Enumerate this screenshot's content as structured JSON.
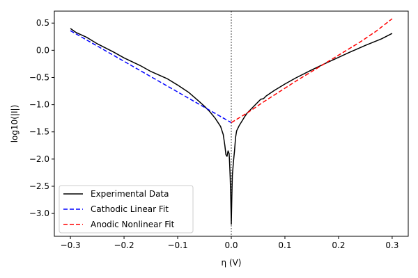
{
  "chart_data": {
    "type": "line",
    "title": "",
    "xlabel": "η (V)",
    "ylabel": "log10(|I|)",
    "xlim": [
      -0.33,
      0.33
    ],
    "ylim": [
      -3.42,
      0.72
    ],
    "xticks": [
      -0.3,
      -0.2,
      -0.1,
      0.0,
      0.1,
      0.2,
      0.3
    ],
    "xtick_labels": [
      "−0.3",
      "−0.2",
      "−0.1",
      "0.0",
      "0.1",
      "0.2",
      "0.3"
    ],
    "yticks": [
      -3.0,
      -2.5,
      -2.0,
      -1.5,
      -1.0,
      -0.5,
      0.0,
      0.5
    ],
    "ytick_labels": [
      "−3.0",
      "−2.5",
      "−2.0",
      "−1.5",
      "−1.0",
      "−0.5",
      "0.0",
      "0.5"
    ],
    "grid": false,
    "legend_position": "lower-left",
    "reference_line": {
      "x": 0.0,
      "style": "dotted",
      "color": "#808080"
    },
    "series": [
      {
        "name": "Experimental Data",
        "color": "#000000",
        "style": "solid",
        "points": [
          [
            -0.3,
            0.4
          ],
          [
            -0.29,
            0.33
          ],
          [
            -0.27,
            0.24
          ],
          [
            -0.25,
            0.12
          ],
          [
            -0.22,
            -0.03
          ],
          [
            -0.2,
            -0.14
          ],
          [
            -0.17,
            -0.28
          ],
          [
            -0.15,
            -0.39
          ],
          [
            -0.12,
            -0.52
          ],
          [
            -0.1,
            -0.64
          ],
          [
            -0.08,
            -0.77
          ],
          [
            -0.06,
            -0.94
          ],
          [
            -0.05,
            -1.03
          ],
          [
            -0.04,
            -1.13
          ],
          [
            -0.03,
            -1.25
          ],
          [
            -0.02,
            -1.4
          ],
          [
            -0.015,
            -1.55
          ],
          [
            -0.012,
            -1.75
          ],
          [
            -0.01,
            -1.92
          ],
          [
            -0.008,
            -1.95
          ],
          [
            -0.006,
            -1.85
          ],
          [
            -0.004,
            -1.9
          ],
          [
            -0.003,
            -2.1
          ],
          [
            -0.002,
            -2.35
          ],
          [
            -0.001,
            -2.7
          ],
          [
            0.0,
            -3.2
          ],
          [
            0.001,
            -2.7
          ],
          [
            0.002,
            -2.3
          ],
          [
            0.004,
            -2.05
          ],
          [
            0.006,
            -1.85
          ],
          [
            0.008,
            -1.6
          ],
          [
            0.01,
            -1.48
          ],
          [
            0.015,
            -1.38
          ],
          [
            0.02,
            -1.3
          ],
          [
            0.025,
            -1.22
          ],
          [
            0.03,
            -1.15
          ],
          [
            0.04,
            -1.05
          ],
          [
            0.05,
            -0.95
          ],
          [
            0.055,
            -0.9
          ],
          [
            0.06,
            -0.89
          ],
          [
            0.065,
            -0.84
          ],
          [
            0.08,
            -0.74
          ],
          [
            0.1,
            -0.62
          ],
          [
            0.12,
            -0.51
          ],
          [
            0.15,
            -0.36
          ],
          [
            0.18,
            -0.22
          ],
          [
            0.2,
            -0.13
          ],
          [
            0.22,
            -0.04
          ],
          [
            0.25,
            0.09
          ],
          [
            0.28,
            0.21
          ],
          [
            0.3,
            0.31
          ]
        ]
      },
      {
        "name": "Cathodic Linear Fit",
        "color": "#0000ff",
        "style": "dashed",
        "points": [
          [
            -0.3,
            0.36
          ],
          [
            0.0,
            -1.33
          ]
        ]
      },
      {
        "name": "Anodic Nonlinear Fit",
        "color": "#ff0000",
        "style": "dashed",
        "points": [
          [
            0.0,
            -1.33
          ],
          [
            0.03,
            -1.15
          ],
          [
            0.06,
            -0.95
          ],
          [
            0.09,
            -0.76
          ],
          [
            0.12,
            -0.57
          ],
          [
            0.15,
            -0.39
          ],
          [
            0.18,
            -0.21
          ],
          [
            0.21,
            -0.03
          ],
          [
            0.24,
            0.15
          ],
          [
            0.27,
            0.35
          ],
          [
            0.3,
            0.58
          ]
        ]
      }
    ]
  }
}
